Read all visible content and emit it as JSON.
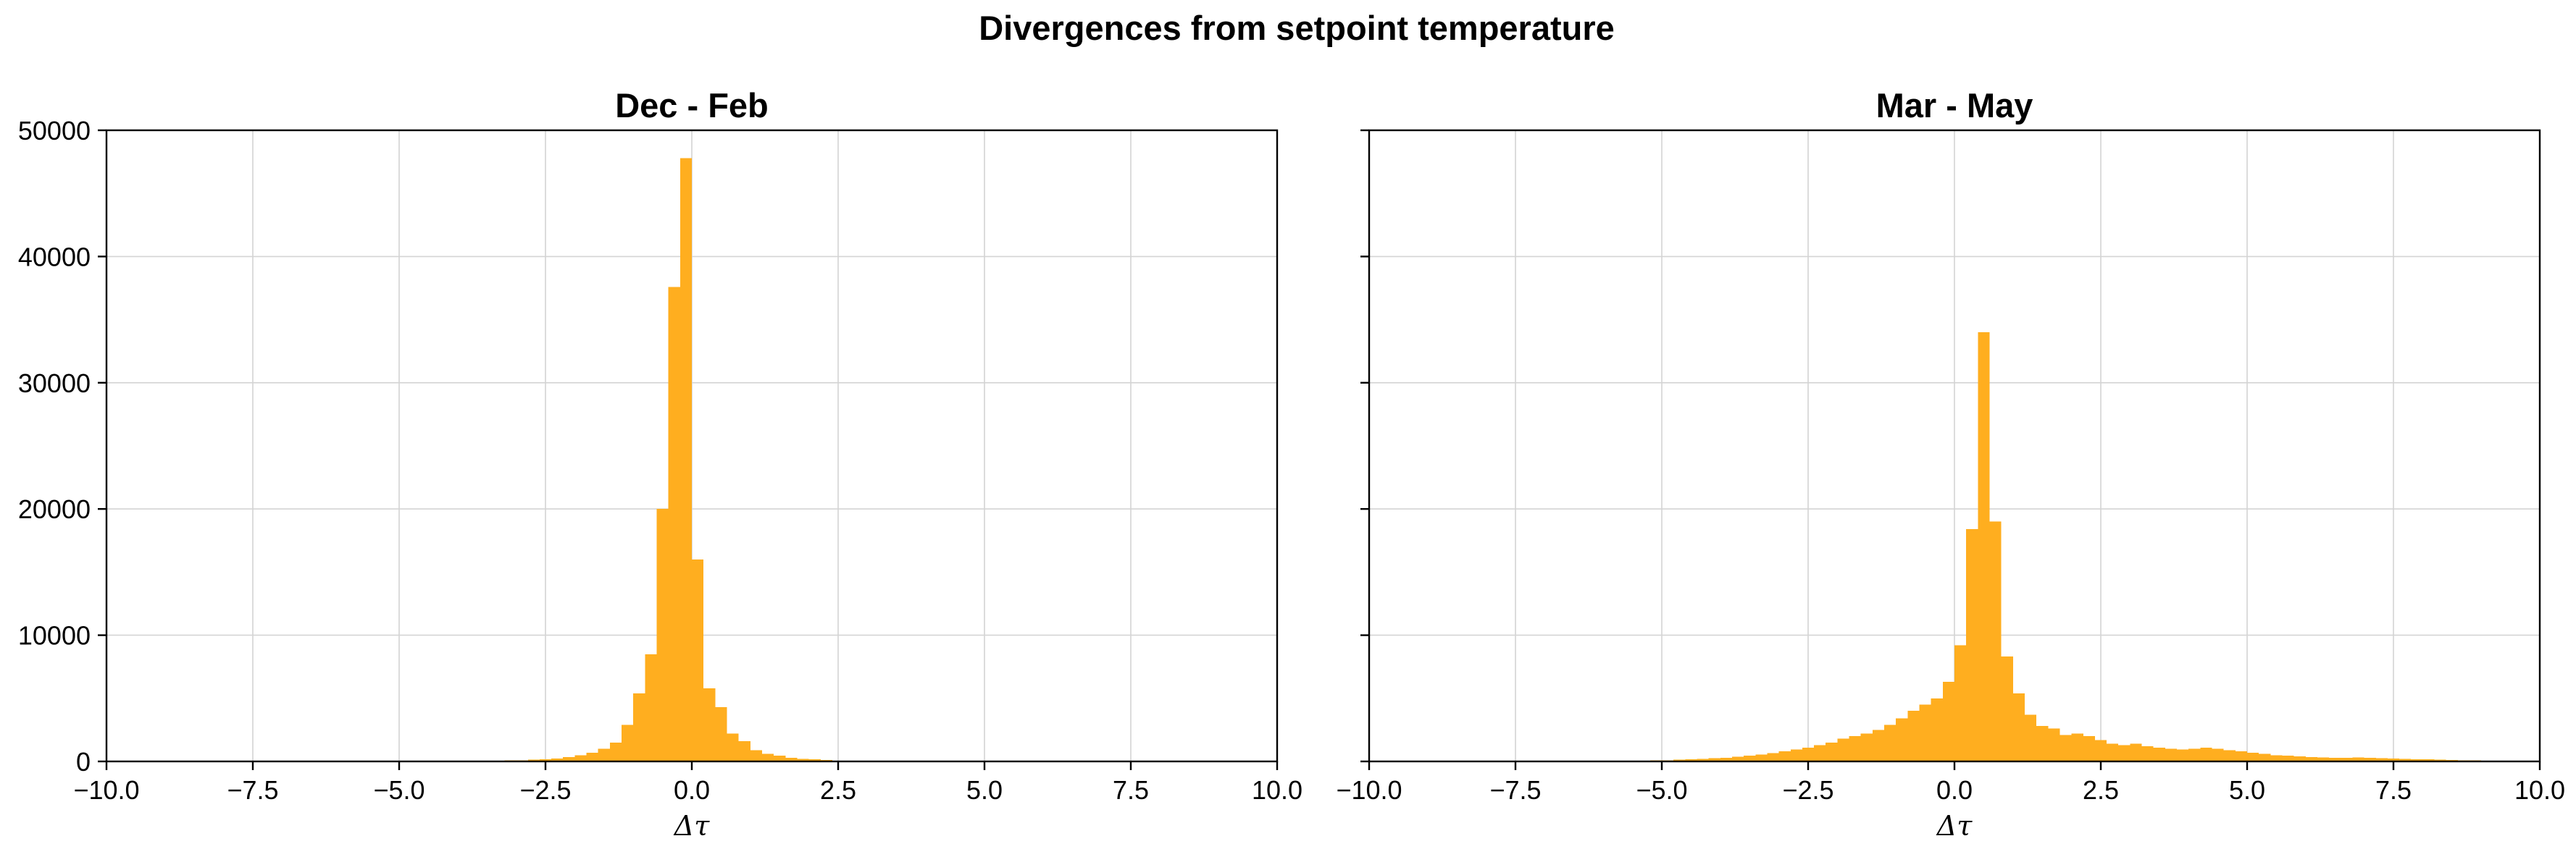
{
  "figure": {
    "title": "Divergences from setpoint temperature",
    "bar_color": "#ffae1f",
    "grid_color": "#d4d4d4"
  },
  "chart_data": [
    {
      "type": "bar",
      "title": "Dec - Feb",
      "xlabel": "Δτ",
      "ylabel": "",
      "xlim": [
        -10,
        10
      ],
      "ylim": [
        0,
        50000
      ],
      "xticks": [
        -10,
        -7.5,
        -5,
        -2.5,
        0,
        2.5,
        5,
        7.5,
        10
      ],
      "xtick_labels": [
        "−10.0",
        "−7.5",
        "−5.0",
        "−2.5",
        "0.0",
        "2.5",
        "5.0",
        "7.5",
        "10.0"
      ],
      "yticks": [
        0,
        10000,
        20000,
        30000,
        40000,
        50000
      ],
      "ytick_labels": [
        "0",
        "10000",
        "20000",
        "30000",
        "40000",
        "50000"
      ],
      "grid": true,
      "bin_width": 0.2,
      "bin_left_edges": [
        -3.6,
        -3.4,
        -3.2,
        -3.0,
        -2.8,
        -2.6,
        -2.4,
        -2.2,
        -2.0,
        -1.8,
        -1.6,
        -1.4,
        -1.2,
        -1.0,
        -0.8,
        -0.6,
        -0.4,
        -0.2,
        0.0,
        0.2,
        0.4,
        0.6,
        0.8,
        1.0,
        1.2,
        1.4,
        1.6,
        1.8,
        2.0,
        2.2,
        2.4,
        2.6,
        2.8
      ],
      "values": [
        50,
        60,
        80,
        100,
        130,
        170,
        230,
        330,
        500,
        700,
        1000,
        1500,
        2900,
        5400,
        8500,
        20000,
        37600,
        47800,
        16000,
        5800,
        4300,
        2200,
        1600,
        900,
        600,
        450,
        300,
        200,
        160,
        110,
        70,
        40,
        20
      ]
    },
    {
      "type": "bar",
      "title": "Mar - May",
      "xlabel": "Δτ",
      "ylabel": "",
      "xlim": [
        -10,
        10
      ],
      "ylim": [
        0,
        50000
      ],
      "xticks": [
        -10,
        -7.5,
        -5,
        -2.5,
        0,
        2.5,
        5,
        7.5,
        10
      ],
      "xtick_labels": [
        "−10.0",
        "−7.5",
        "−5.0",
        "−2.5",
        "0.0",
        "2.5",
        "5.0",
        "7.5",
        "10.0"
      ],
      "yticks": [
        0,
        10000,
        20000,
        30000,
        40000,
        50000
      ],
      "ytick_labels": [],
      "grid": true,
      "bin_width": 0.2,
      "bin_left_edges": [
        -6.0,
        -5.8,
        -5.6,
        -5.4,
        -5.2,
        -5.0,
        -4.8,
        -4.6,
        -4.4,
        -4.2,
        -4.0,
        -3.8,
        -3.6,
        -3.4,
        -3.2,
        -3.0,
        -2.8,
        -2.6,
        -2.4,
        -2.2,
        -2.0,
        -1.8,
        -1.6,
        -1.4,
        -1.2,
        -1.0,
        -0.8,
        -0.6,
        -0.4,
        -0.2,
        0.0,
        0.2,
        0.4,
        0.6,
        0.8,
        1.0,
        1.2,
        1.4,
        1.6,
        1.8,
        2.0,
        2.2,
        2.4,
        2.6,
        2.8,
        3.0,
        3.2,
        3.4,
        3.6,
        3.8,
        4.0,
        4.2,
        4.4,
        4.6,
        4.8,
        5.0,
        5.2,
        5.4,
        5.6,
        5.8,
        6.0,
        6.2,
        6.4,
        6.6,
        6.8,
        7.0,
        7.2,
        7.4,
        7.6,
        7.8,
        8.0,
        8.2,
        8.4,
        8.6,
        8.8,
        9.0,
        9.2,
        9.4,
        9.6,
        9.8
      ],
      "values": [
        30,
        40,
        50,
        60,
        80,
        100,
        130,
        160,
        200,
        250,
        300,
        380,
        450,
        550,
        650,
        800,
        950,
        1100,
        1300,
        1500,
        1800,
        2000,
        2200,
        2500,
        2900,
        3400,
        4000,
        4500,
        5000,
        6300,
        9200,
        18400,
        34000,
        19000,
        8300,
        5400,
        3700,
        2800,
        2600,
        2100,
        2200,
        2000,
        1700,
        1400,
        1300,
        1400,
        1200,
        1100,
        1000,
        950,
        1000,
        1100,
        1000,
        900,
        800,
        700,
        600,
        500,
        450,
        400,
        350,
        320,
        300,
        300,
        320,
        280,
        250,
        220,
        200,
        180,
        160,
        140,
        120,
        100,
        80,
        70,
        60,
        50,
        40,
        30
      ]
    }
  ]
}
